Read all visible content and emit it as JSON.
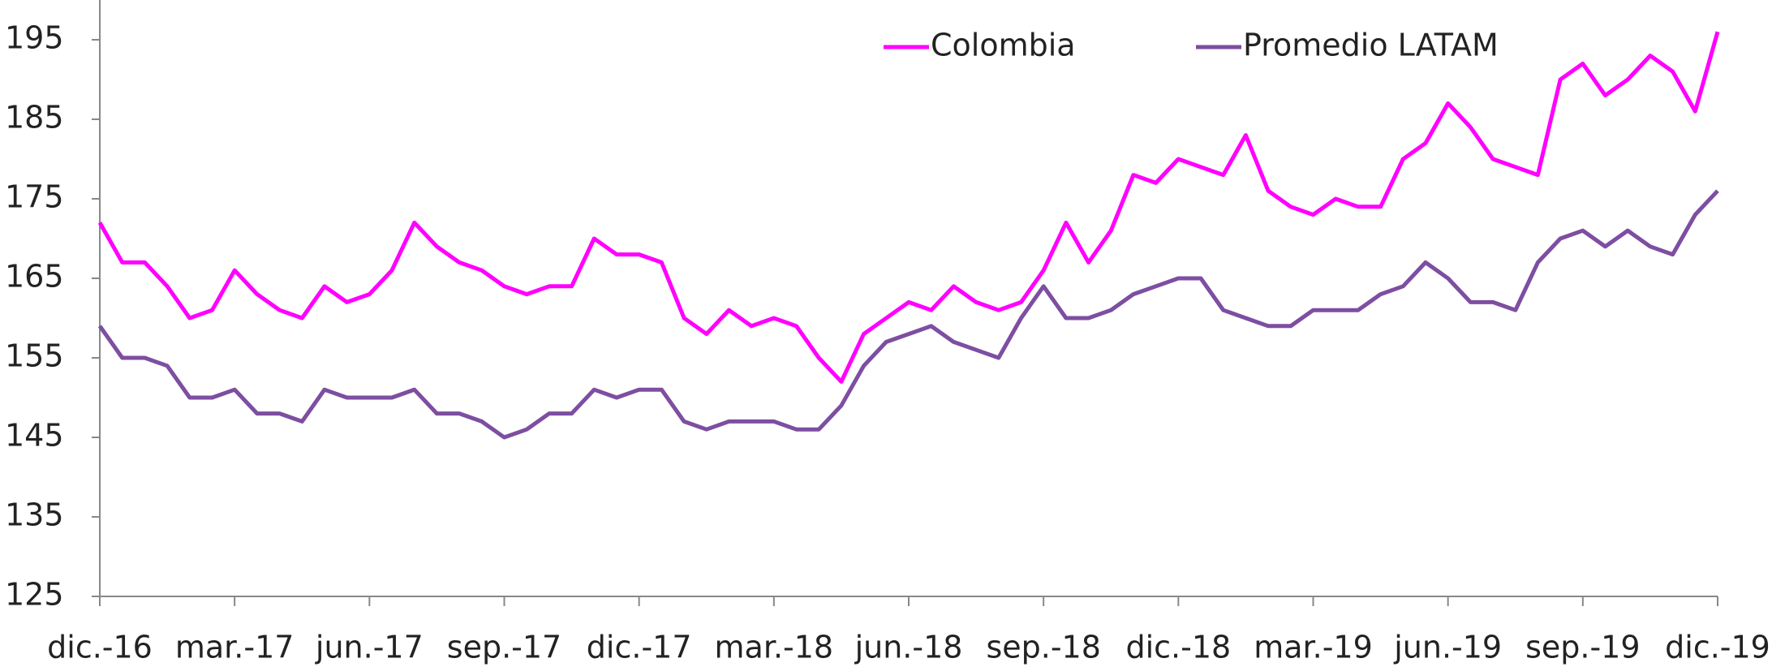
{
  "chart_data": {
    "type": "line",
    "categories": [
      "dic.-16",
      null,
      null,
      null,
      null,
      null,
      "mar.-17",
      null,
      null,
      null,
      null,
      null,
      "jun.-17",
      null,
      null,
      null,
      null,
      null,
      "sep.-17",
      null,
      null,
      null,
      null,
      null,
      "dic.-17",
      null,
      null,
      null,
      null,
      null,
      "mar.-18",
      null,
      null,
      null,
      null,
      null,
      "jun.-18",
      null,
      null,
      null,
      null,
      null,
      "sep.-18",
      null,
      null,
      null,
      null,
      null,
      "dic.-18",
      null,
      null,
      null,
      null,
      null,
      "mar.-19",
      null,
      null,
      null,
      null,
      null,
      "jun.-19",
      null,
      null,
      null,
      null,
      null,
      "sep.-19",
      null,
      null,
      null,
      null,
      null,
      "dic.-19"
    ],
    "series": [
      {
        "name": "Colombia",
        "color": "#ff00ff",
        "values": [
          172,
          167,
          167,
          164,
          160,
          161,
          166,
          163,
          161,
          160,
          164,
          162,
          163,
          166,
          172,
          169,
          167,
          166,
          164,
          163,
          164,
          164,
          170,
          168,
          168,
          167,
          160,
          158,
          161,
          159,
          160,
          159,
          155,
          152,
          158,
          160,
          162,
          161,
          164,
          162,
          161,
          162,
          166,
          172,
          167,
          171,
          178,
          177,
          180,
          179,
          178,
          183,
          176,
          174,
          173,
          175,
          174,
          174,
          180,
          182,
          187,
          184,
          180,
          179,
          178,
          190,
          192,
          188,
          190,
          193,
          191,
          186,
          196
        ]
      },
      {
        "name": "Promedio LATAM",
        "color": "#7d4ea1",
        "values": [
          159,
          155,
          155,
          154,
          150,
          150,
          151,
          148,
          148,
          147,
          151,
          150,
          150,
          150,
          151,
          148,
          148,
          147,
          145,
          146,
          148,
          148,
          151,
          150,
          151,
          151,
          147,
          146,
          147,
          147,
          147,
          146,
          146,
          149,
          154,
          157,
          158,
          159,
          157,
          156,
          155,
          160,
          164,
          160,
          160,
          161,
          163,
          164,
          165,
          165,
          161,
          160,
          159,
          159,
          161,
          161,
          161,
          163,
          164,
          167,
          165,
          162,
          162,
          161,
          167,
          170,
          171,
          169,
          171,
          169,
          168,
          173,
          176
        ]
      }
    ],
    "ylim": [
      125,
      200
    ],
    "yticks": [
      125,
      135,
      145,
      155,
      165,
      175,
      185,
      195
    ],
    "grid": false
  }
}
